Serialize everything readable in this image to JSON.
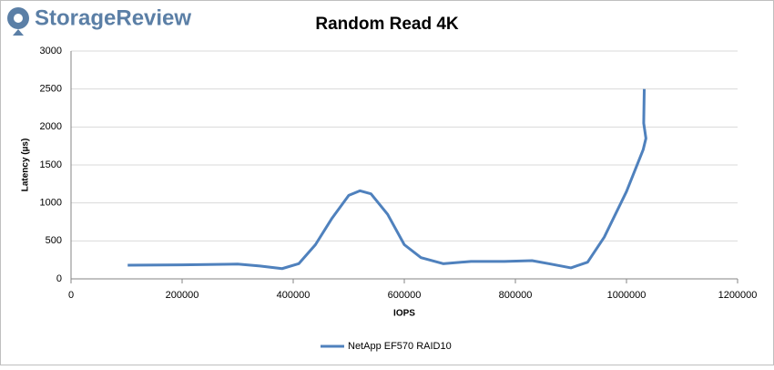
{
  "logo": "StorageReview",
  "chart_data": {
    "type": "line",
    "title": "Random Read 4K",
    "x_label": "IOPS",
    "y_label": "Latency (µs)",
    "xlim": [
      0,
      1200000
    ],
    "xticks": [
      0,
      200000,
      400000,
      600000,
      800000,
      1000000,
      1200000
    ],
    "ylim": [
      0,
      3000
    ],
    "yticks": [
      0,
      500,
      1000,
      1500,
      2000,
      2500,
      3000
    ],
    "grid": true,
    "legend": "bottom",
    "series": [
      {
        "name": "NetApp EF570 RAID10",
        "color": "#4f81bd",
        "x": [
          102000,
          200000,
          300000,
          340000,
          380000,
          410000,
          440000,
          470000,
          500000,
          520000,
          540000,
          570000,
          600000,
          630000,
          670000,
          720000,
          780000,
          830000,
          860000,
          900000,
          930000,
          960000,
          1000000,
          1030000,
          1035000,
          1031000,
          1032000
        ],
        "values": [
          180,
          185,
          195,
          170,
          135,
          200,
          450,
          800,
          1100,
          1160,
          1120,
          850,
          450,
          280,
          200,
          230,
          230,
          240,
          200,
          145,
          220,
          550,
          1150,
          1700,
          1850,
          2050,
          2500
        ]
      }
    ]
  }
}
